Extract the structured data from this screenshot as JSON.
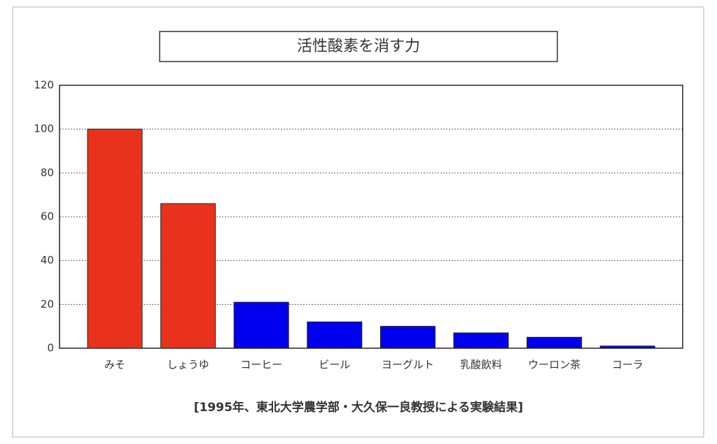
{
  "chart_data": {
    "type": "bar",
    "title": "活性酸素を消す力",
    "categories": [
      "みそ",
      "しょうゆ",
      "コーヒー",
      "ビール",
      "ヨーグルト",
      "乳酸飲料",
      "ウーロン茶",
      "コーラ"
    ],
    "values": [
      100,
      66,
      21,
      12,
      10,
      7,
      5,
      1
    ],
    "colors": [
      "#e8321e",
      "#e8321e",
      "#0000ee",
      "#0000ee",
      "#0000ee",
      "#0000ee",
      "#0000ee",
      "#0000ee"
    ],
    "ylim": [
      0,
      120
    ],
    "yticks": [
      0,
      20,
      40,
      60,
      80,
      100,
      120
    ],
    "grid": true,
    "note": "[1995年、東北大学農学部・大久保一良教授による実験結果]"
  }
}
